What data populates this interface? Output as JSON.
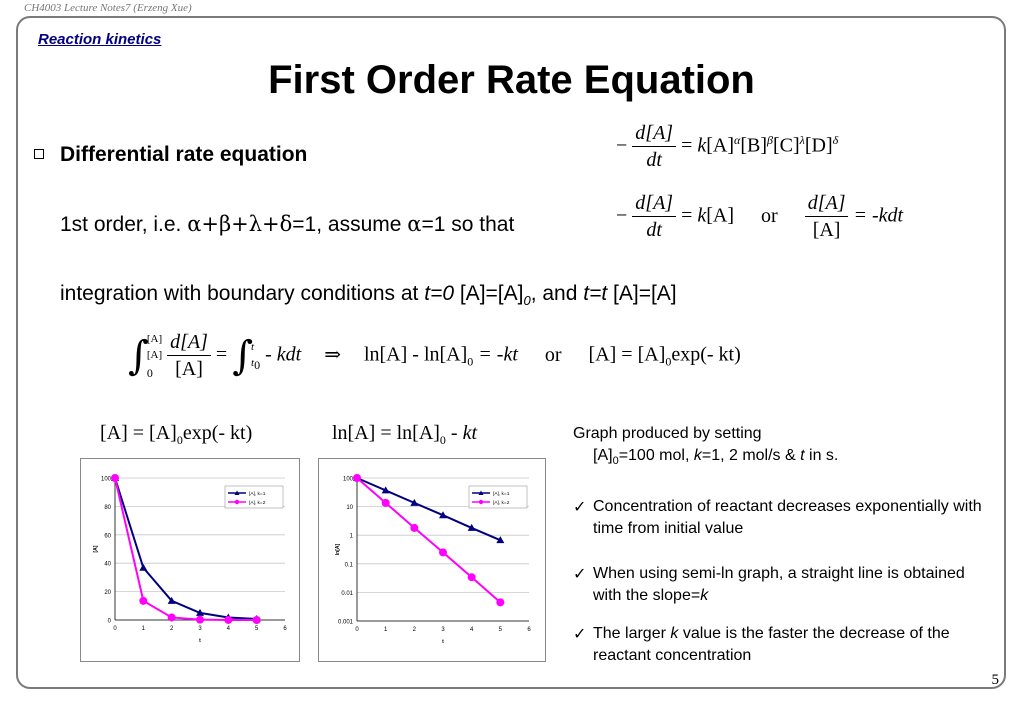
{
  "header": "CH4003 Lecture Notes7 (Erzeng Xue)",
  "section": "Reaction kinetics",
  "title": "First Order Rate Equation",
  "bullet": "Differential rate equation",
  "line2": {
    "prefix": "1st order, i.e. ",
    "sum": "α+β+λ+δ",
    "mid": "=1, assume ",
    "alpha": "α",
    "suffix": "=1 so that"
  },
  "line3": {
    "a": "integration with boundary conditions at ",
    "t0": "t=0",
    "b": " [A]=[A]",
    "sub0": "0",
    "c": ", and ",
    "tt": "t=t",
    "d": " [A]=[A]"
  },
  "equations": {
    "rate_general": {
      "num": "d[A]",
      "den": "dt",
      "rhs_k": "k",
      "a": "[A]",
      "alpha": "α",
      "b": "[B]",
      "beta": "β",
      "c": "[C]",
      "lambda": "λ",
      "d": "[D]",
      "delta": "δ"
    },
    "rate_first": {
      "num": "d[A]",
      "den": "dt",
      "rhs_k": "k",
      "rhs": "[A]",
      "or": "or",
      "num2": "d[A]",
      "den2": "[A]",
      "rhs2": "= -kdt"
    },
    "integral": {
      "upper": "[A]",
      "lower": "[A]",
      "lower_sub": "0",
      "num": "d[A]",
      "den": "[A]",
      "upper2": "t",
      "lower2": "t",
      "lower2_sub": "0",
      "integrand2": "- kdt",
      "arrow": "⇒",
      "ln": "ln[A] - ln[A]",
      "ln_sub": "0",
      "ln_rhs": "= -kt",
      "or": "or",
      "res": "[A] = [A]",
      "res_sub": "0",
      "res_rhs": "exp(- kt)"
    },
    "chart1_eq": {
      "lhs": "[A] = [A]",
      "sub": "0",
      "rhs": "exp(- kt)"
    },
    "chart2_eq": {
      "lhs": "ln[A]  = ln[A]",
      "sub": "0",
      "rhs": " - kt"
    }
  },
  "notes": {
    "graph_line1": "Graph produced by setting",
    "graph_line2a": "[A]",
    "graph_line2_sub": "0",
    "graph_line2b": "=100 mol, ",
    "graph_line2_k": "k",
    "graph_line2c": "=1, 2 mol/s & ",
    "graph_line2_t": "t",
    "graph_line2d": " in s.",
    "check": "✓",
    "c1": "Concentration of reactant decreases exponentially with time from initial value",
    "c2a": "When using semi-ln graph, a straight line is obtained with the slope=",
    "c2k": "k",
    "c3a": "The larger ",
    "c3k": "k",
    "c3b": " value is the faster the decrease of the reactant concentration"
  },
  "page_number": "5",
  "colors": {
    "series1": "#000080",
    "series2": "#ff00ff",
    "section": "#000080"
  },
  "chart_data": [
    {
      "type": "line",
      "x": [
        0,
        1,
        2,
        3,
        4,
        5
      ],
      "xticks": [
        "0",
        "1",
        "2",
        "3",
        "4",
        "5",
        "6"
      ],
      "xlim": [
        0,
        6
      ],
      "ylim": [
        0,
        100
      ],
      "yticks": [
        "0",
        "20",
        "40",
        "60",
        "80",
        "100"
      ],
      "xlabel": "t",
      "ylabel": "[A]",
      "legend_position": "top-right",
      "series": [
        {
          "name": "[A], k=1",
          "values": [
            100,
            36.8,
            13.5,
            5.0,
            1.8,
            0.7
          ]
        },
        {
          "name": "[A], k=2",
          "values": [
            100,
            13.5,
            1.8,
            0.25,
            0.03,
            0.005
          ]
        }
      ]
    },
    {
      "type": "line",
      "scale": "log",
      "x": [
        0,
        1,
        2,
        3,
        4,
        5
      ],
      "xticks": [
        "0",
        "1",
        "2",
        "3",
        "4",
        "5",
        "6"
      ],
      "xlim": [
        0,
        6
      ],
      "ylim": [
        0.001,
        100
      ],
      "yticks": [
        "0.001",
        "0.01",
        "0.1",
        "1",
        "10",
        "100"
      ],
      "xlabel": "t",
      "ylabel": "ln[A]",
      "legend_position": "top-right",
      "series": [
        {
          "name": "[A], k=1",
          "values": [
            100,
            36.8,
            13.5,
            5.0,
            1.8,
            0.67
          ]
        },
        {
          "name": "[A], k=2",
          "values": [
            100,
            13.5,
            1.8,
            0.25,
            0.034,
            0.0045
          ]
        }
      ]
    }
  ]
}
